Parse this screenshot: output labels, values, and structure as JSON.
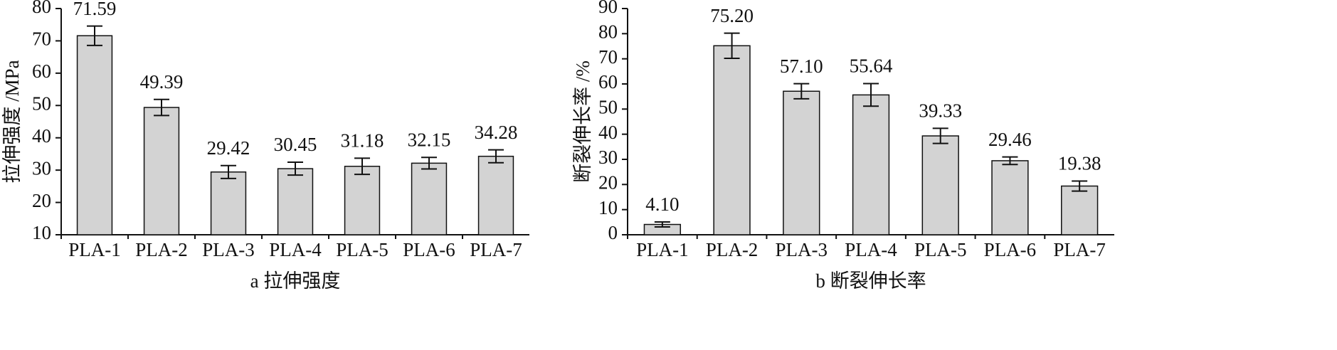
{
  "chart_data": [
    {
      "type": "bar",
      "x_label": "a 拉伸强度",
      "y_label": "拉伸强度 /MPa",
      "categories": [
        "PLA-1",
        "PLA-2",
        "PLA-3",
        "PLA-4",
        "PLA-5",
        "PLA-6",
        "PLA-7"
      ],
      "values": [
        71.59,
        49.39,
        29.42,
        30.45,
        31.18,
        32.15,
        34.28
      ],
      "errors": [
        3,
        2.5,
        2,
        2,
        2.5,
        1.8,
        2
      ],
      "color": "#d3d3d3",
      "ylim": [
        10,
        80
      ],
      "yticks": [
        10,
        20,
        30,
        40,
        50,
        60,
        70,
        80
      ]
    },
    {
      "type": "bar",
      "x_label": "b 断裂伸长率",
      "y_label": "断裂伸长率 /%",
      "categories": [
        "PLA-1",
        "PLA-2",
        "PLA-3",
        "PLA-4",
        "PLA-5",
        "PLA-6",
        "PLA-7"
      ],
      "values": [
        4.1,
        75.2,
        57.1,
        55.64,
        39.33,
        29.46,
        19.38
      ],
      "value_labels": [
        "4.10",
        "75.20",
        "57.10",
        "55.64",
        "39.33",
        "29.46",
        "19.38"
      ],
      "errors": [
        1,
        5,
        3,
        4.5,
        3,
        1.5,
        2
      ],
      "color": "#d3d3d3",
      "ylim": [
        0,
        90
      ],
      "yticks": [
        0,
        10,
        20,
        30,
        40,
        50,
        60,
        70,
        80,
        90
      ]
    }
  ]
}
